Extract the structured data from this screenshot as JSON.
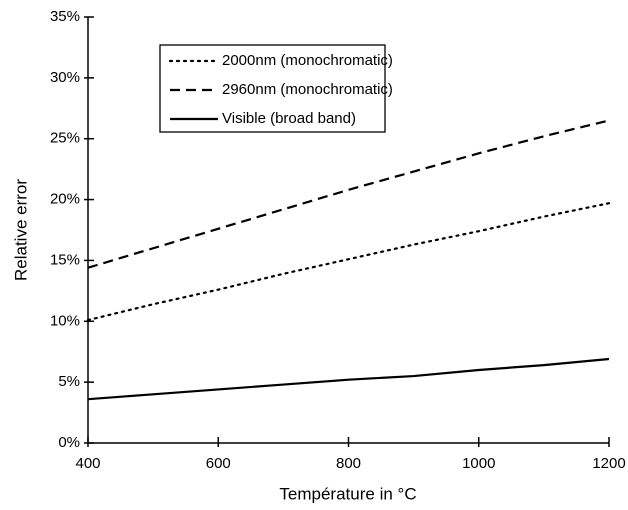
{
  "chart_data": {
    "type": "line",
    "x": [
      400,
      500,
      600,
      700,
      800,
      900,
      1000,
      1100,
      1200
    ],
    "series": [
      {
        "name": "2000nm (monochromatic)",
        "color": "#000000",
        "dash": "dotted",
        "values": [
          10.1,
          11.4,
          12.6,
          13.9,
          15.1,
          16.3,
          17.4,
          18.6,
          19.7
        ]
      },
      {
        "name": "2960nm (monochromatic)",
        "color": "#000000",
        "dash": "dashed",
        "values": [
          14.4,
          16.0,
          17.6,
          19.2,
          20.8,
          22.3,
          23.8,
          25.2,
          26.5
        ]
      },
      {
        "name": "Visible (broad band)",
        "color": "#000000",
        "dash": "solid",
        "values": [
          3.6,
          4.0,
          4.4,
          4.8,
          5.2,
          5.5,
          6.0,
          6.4,
          6.9
        ]
      }
    ],
    "xlabel": "Température in °C",
    "ylabel": "Relative error",
    "xlim": [
      400,
      1200
    ],
    "xticks": [
      400,
      600,
      800,
      1000,
      1200
    ],
    "ylim": [
      0,
      35
    ],
    "yticks": [
      {
        "value": 0,
        "label": "0%"
      },
      {
        "value": 5,
        "label": "5%"
      },
      {
        "value": 10,
        "label": "10%"
      },
      {
        "value": 15,
        "label": "15%"
      },
      {
        "value": 20,
        "label": "20%"
      },
      {
        "value": 25,
        "label": "25%"
      },
      {
        "value": 30,
        "label": "30%"
      },
      {
        "value": 35,
        "label": "35%"
      }
    ],
    "legend": "upper-left"
  }
}
